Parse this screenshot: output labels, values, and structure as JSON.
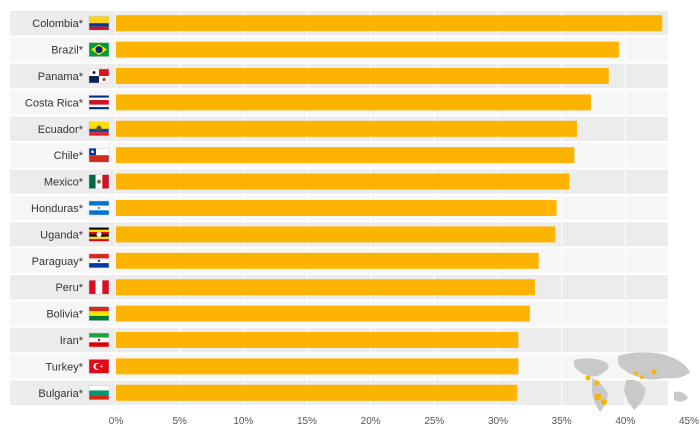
{
  "chart_data": {
    "type": "bar",
    "orientation": "horizontal",
    "categories": [
      "Colombia*",
      "Brazil*",
      "Panama*",
      "Costa Rica*",
      "Ecuador*",
      "Chile*",
      "Mexico*",
      "Honduras*",
      "Uganda*",
      "Paraguay*",
      "Peru*",
      "Bolivia*",
      "Iran*",
      "Turkey*",
      "Bulgaria*"
    ],
    "values": [
      42.9,
      39.5,
      38.7,
      37.3,
      36.2,
      36.0,
      35.6,
      34.6,
      34.5,
      33.2,
      32.9,
      32.5,
      31.6,
      31.6,
      31.5
    ],
    "xlim": [
      0,
      45
    ],
    "xticks": [
      0,
      5,
      10,
      15,
      20,
      25,
      30,
      35,
      40,
      45
    ],
    "tick_suffix": "%",
    "bar_color": "#fcb400",
    "grid": true,
    "flags": [
      "colombia",
      "brazil",
      "panama",
      "costa-rica",
      "ecuador",
      "chile",
      "mexico",
      "honduras",
      "uganda",
      "paraguay",
      "peru",
      "bolivia",
      "iran",
      "turkey",
      "bulgaria"
    ],
    "decoration": "world-map-highlight"
  }
}
